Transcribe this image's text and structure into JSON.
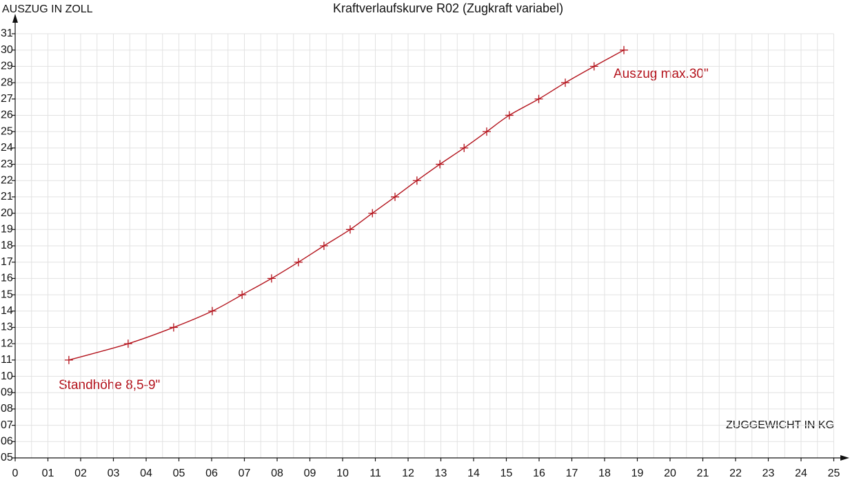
{
  "chart_data": {
    "type": "line",
    "title": "Kraftverlaufskurve R02 (Zugkraft variabel)",
    "x_label": "ZUGGEWICHT IN KG",
    "y_label": "AUSZUG IN ZOLL",
    "annotations": [
      "Standhöhe 8,5-9\"",
      "Auszug max.30\""
    ],
    "color": "#b3121b",
    "x": [
      1.64,
      3.45,
      4.84,
      6.02,
      6.93,
      7.83,
      8.65,
      9.43,
      10.23,
      10.91,
      11.6,
      12.27,
      12.97,
      13.71,
      14.4,
      15.09,
      15.99,
      16.8,
      17.68,
      18.59
    ],
    "values": [
      11,
      12,
      13,
      14,
      15,
      16,
      17,
      18,
      19,
      20,
      21,
      22,
      23,
      24,
      25,
      26,
      27,
      28,
      29,
      30
    ],
    "xlim": [
      0,
      25
    ],
    "ylim": [
      5,
      31
    ],
    "xticks": [
      0,
      {
        "value": 1,
        "label": "01"
      },
      {
        "value": 2,
        "label": "02"
      },
      {
        "value": 3,
        "label": "03"
      },
      {
        "value": 4,
        "label": "04"
      },
      {
        "value": 5,
        "label": "05"
      },
      {
        "value": 6,
        "label": "06"
      },
      {
        "value": 7,
        "label": "07"
      },
      {
        "value": 8,
        "label": "08"
      },
      {
        "value": 9,
        "label": "09"
      },
      10,
      11,
      12,
      13,
      14,
      15,
      16,
      17,
      18,
      19,
      20,
      21,
      22,
      23,
      24,
      25
    ],
    "yticks": [
      {
        "value": 5,
        "label": "05"
      },
      {
        "value": 6,
        "label": "06"
      },
      {
        "value": 7,
        "label": "07"
      },
      {
        "value": 8,
        "label": "08"
      },
      {
        "value": 9,
        "label": "09"
      },
      10,
      11,
      12,
      13,
      14,
      15,
      16,
      17,
      18,
      19,
      20,
      21,
      22,
      23,
      24,
      25,
      26,
      27,
      28,
      29,
      30,
      31
    ],
    "grid": true
  }
}
